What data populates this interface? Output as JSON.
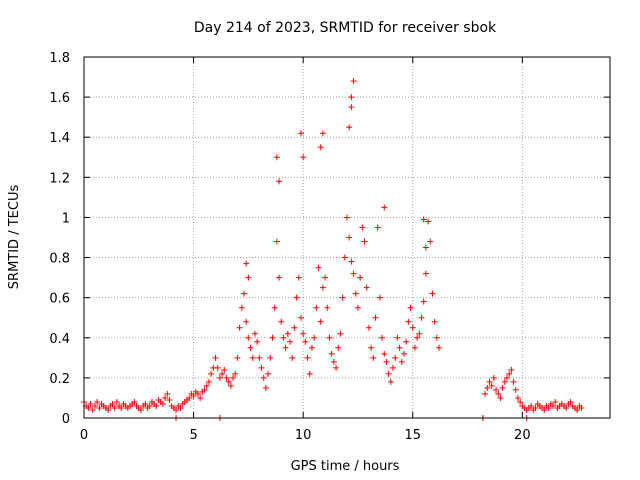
{
  "chart_data": {
    "type": "scatter",
    "title": "Day 214 of 2023, SRMTID for receiver sbok",
    "xlabel": "GPS time / hours",
    "ylabel": "SRMTID / TECUs",
    "xlim": [
      0,
      24
    ],
    "ylim": [
      0,
      1.8
    ],
    "xticks": [
      0,
      5,
      10,
      15,
      20
    ],
    "xtick_labels": [
      "0",
      "5",
      "10",
      "15",
      "20"
    ],
    "yticks": [
      0,
      0.2,
      0.4,
      0.6,
      0.8,
      1,
      1.2,
      1.4,
      1.6,
      1.8
    ],
    "ytick_labels": [
      "0",
      "0.2",
      "0.4",
      "0.6",
      "0.8",
      "1",
      "1.2",
      "1.4",
      "1.6",
      "1.8"
    ],
    "grid": true,
    "marker": "plus",
    "color": "#ff0000",
    "series": [
      {
        "name": "SRMTID",
        "x": [
          0.0,
          0.1,
          0.2,
          0.3,
          0.4,
          0.5,
          0.6,
          0.7,
          0.8,
          0.9,
          1.0,
          1.1,
          1.2,
          1.3,
          1.4,
          1.5,
          1.6,
          1.7,
          1.8,
          1.9,
          2.0,
          2.1,
          2.2,
          2.3,
          2.4,
          2.5,
          2.6,
          2.7,
          2.8,
          2.9,
          3.0,
          3.1,
          3.2,
          3.3,
          3.4,
          3.5,
          3.6,
          3.7,
          3.8,
          3.9,
          4.0,
          4.1,
          4.2,
          4.3,
          4.4,
          4.5,
          4.6,
          4.7,
          4.8,
          4.9,
          5.0,
          5.1,
          5.2,
          5.3,
          5.4,
          5.5,
          5.6,
          5.7,
          5.8,
          5.9,
          6.0,
          6.1,
          6.2,
          6.3,
          6.4,
          6.5,
          6.6,
          6.7,
          6.8,
          6.9,
          7.0,
          7.1,
          7.2,
          7.3,
          7.4,
          7.5,
          7.6,
          7.7,
          7.8,
          7.9,
          8.0,
          8.1,
          8.2,
          8.3,
          8.4,
          8.5,
          8.6,
          8.7,
          8.8,
          8.9,
          9.0,
          9.1,
          9.2,
          9.3,
          9.4,
          9.5,
          9.6,
          9.7,
          9.8,
          9.9,
          10.0,
          10.1,
          10.2,
          10.3,
          10.4,
          10.5,
          10.6,
          10.7,
          10.8,
          10.9,
          11.0,
          11.1,
          11.2,
          11.3,
          11.4,
          11.5,
          11.6,
          11.7,
          11.8,
          11.9,
          12.0,
          12.1,
          12.2,
          12.3,
          12.4,
          12.5,
          12.6,
          12.7,
          12.8,
          12.9,
          13.0,
          13.1,
          13.2,
          13.3,
          13.4,
          13.5,
          13.6,
          13.7,
          13.8,
          13.9,
          14.0,
          14.1,
          14.2,
          14.3,
          14.4,
          14.5,
          14.6,
          14.7,
          14.8,
          14.9,
          15.0,
          15.1,
          15.2,
          15.3,
          15.4,
          15.5,
          15.6,
          15.7,
          15.8,
          15.9,
          16.0,
          16.1,
          16.2,
          4.2,
          6.2,
          8.8,
          8.9,
          9.9,
          10.0,
          10.8,
          10.9,
          12.1,
          12.2,
          12.3,
          12.2,
          13.7,
          15.5,
          15.6,
          7.4,
          7.5,
          18.2,
          18.3,
          18.4,
          18.5,
          18.6,
          18.7,
          18.8,
          18.9,
          19.0,
          19.1,
          19.2,
          19.3,
          19.4,
          19.5,
          19.6,
          19.7,
          19.8,
          19.9,
          20.0,
          20.1,
          20.2,
          18.2,
          20.2,
          20.3,
          20.4,
          20.5,
          20.6,
          20.7,
          20.8,
          20.9,
          21.0,
          21.1,
          21.2,
          21.3,
          21.4,
          21.5,
          21.6,
          21.7,
          21.8,
          21.9,
          22.0,
          22.1,
          22.2,
          22.3,
          22.4,
          22.5,
          22.6,
          22.7
        ],
        "y": [
          0.08,
          0.06,
          0.05,
          0.07,
          0.04,
          0.06,
          0.08,
          0.05,
          0.07,
          0.06,
          0.05,
          0.04,
          0.06,
          0.07,
          0.05,
          0.08,
          0.06,
          0.05,
          0.07,
          0.06,
          0.05,
          0.06,
          0.07,
          0.08,
          0.06,
          0.05,
          0.04,
          0.06,
          0.07,
          0.05,
          0.06,
          0.08,
          0.07,
          0.06,
          0.09,
          0.08,
          0.07,
          0.1,
          0.12,
          0.09,
          0.06,
          0.05,
          0.04,
          0.06,
          0.05,
          0.07,
          0.08,
          0.09,
          0.1,
          0.12,
          0.11,
          0.13,
          0.12,
          0.1,
          0.13,
          0.14,
          0.16,
          0.18,
          0.22,
          0.25,
          0.3,
          0.25,
          0.2,
          0.22,
          0.24,
          0.2,
          0.18,
          0.16,
          0.2,
          0.22,
          0.3,
          0.45,
          0.55,
          0.62,
          0.48,
          0.4,
          0.35,
          0.3,
          0.42,
          0.38,
          0.3,
          0.25,
          0.2,
          0.15,
          0.22,
          0.3,
          0.4,
          0.55,
          0.88,
          0.7,
          0.48,
          0.4,
          0.35,
          0.42,
          0.38,
          0.3,
          0.45,
          0.6,
          0.7,
          0.5,
          0.42,
          0.38,
          0.3,
          0.22,
          0.35,
          0.4,
          0.55,
          0.75,
          0.48,
          0.65,
          0.7,
          0.55,
          0.4,
          0.32,
          0.28,
          0.25,
          0.35,
          0.42,
          0.6,
          0.8,
          1.0,
          0.9,
          0.78,
          0.72,
          0.62,
          0.55,
          0.7,
          0.95,
          0.88,
          0.65,
          0.45,
          0.35,
          0.3,
          0.5,
          0.95,
          0.6,
          0.4,
          0.32,
          0.28,
          0.22,
          0.18,
          0.25,
          0.3,
          0.4,
          0.35,
          0.28,
          0.32,
          0.38,
          0.48,
          0.55,
          0.45,
          0.35,
          0.4,
          0.42,
          0.5,
          0.58,
          0.72,
          0.98,
          0.88,
          0.62,
          0.48,
          0.4,
          0.35,
          0.0,
          0.0,
          1.3,
          1.18,
          1.42,
          1.3,
          1.35,
          1.42,
          1.45,
          1.6,
          1.68,
          1.55,
          1.05,
          0.99,
          0.85,
          0.77,
          0.7,
          0.0,
          0.12,
          0.15,
          0.18,
          0.16,
          0.2,
          0.14,
          0.12,
          0.1,
          0.15,
          0.18,
          0.2,
          0.22,
          0.24,
          0.18,
          0.14,
          0.1,
          0.08,
          0.06,
          0.05,
          0.04,
          0.0,
          0.0,
          0.05,
          0.06,
          0.04,
          0.05,
          0.07,
          0.06,
          0.05,
          0.04,
          0.06,
          0.05,
          0.07,
          0.06,
          0.08,
          0.05,
          0.06,
          0.07,
          0.06,
          0.05,
          0.07,
          0.08,
          0.06,
          0.05,
          0.04,
          0.06,
          0.05
        ]
      }
    ]
  }
}
